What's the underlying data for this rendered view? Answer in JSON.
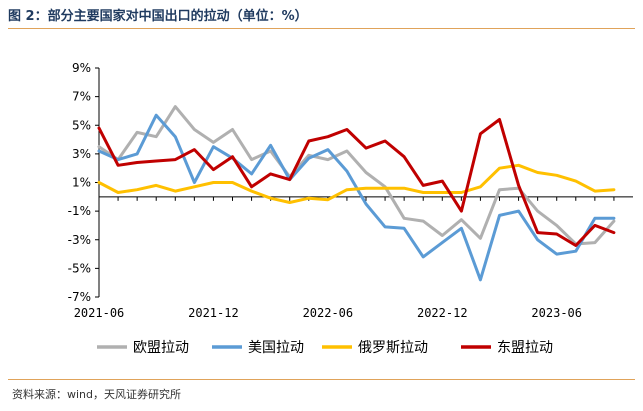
{
  "title": "图 2：部分主要国家对中国出口的拉动（单位：%）",
  "source": "资料来源：wind，天风证券研究所",
  "chart_data": {
    "type": "line",
    "x": [
      "2021-06",
      "2021-07",
      "2021-08",
      "2021-09",
      "2021-10",
      "2021-11",
      "2021-12",
      "2022-01",
      "2022-02",
      "2022-03",
      "2022-04",
      "2022-05",
      "2022-06",
      "2022-07",
      "2022-08",
      "2022-09",
      "2022-10",
      "2022-11",
      "2022-12",
      "2023-01",
      "2023-02",
      "2023-03",
      "2023-04",
      "2023-05",
      "2023-06",
      "2023-07",
      "2023-08",
      "2023-09"
    ],
    "x_tick_labels": [
      "2021-06",
      "2021-12",
      "2022-06",
      "2022-12",
      "2023-06"
    ],
    "y_tick_labels": [
      "9%",
      "7%",
      "5%",
      "3%",
      "1%",
      "-1%",
      "-3%",
      "-5%",
      "-7%"
    ],
    "ylim": [
      -7,
      9
    ],
    "legend_position": "bottom",
    "grid": false,
    "series": [
      {
        "name": "欧盟拉动",
        "color": "#b0b0b0",
        "values": [
          3.5,
          2.6,
          4.5,
          4.2,
          6.3,
          4.7,
          3.8,
          4.7,
          2.6,
          3.2,
          1.4,
          2.9,
          2.6,
          3.2,
          1.7,
          0.7,
          -1.5,
          -1.7,
          -2.7,
          -1.6,
          -2.9,
          0.5,
          0.6,
          -1.0,
          -2.0,
          -3.3,
          -3.2,
          -1.7
        ]
      },
      {
        "name": "美国拉动",
        "color": "#5b9bd5",
        "values": [
          3.2,
          2.6,
          3.0,
          5.7,
          4.2,
          1.0,
          3.5,
          2.7,
          1.6,
          3.6,
          1.2,
          2.7,
          3.3,
          1.8,
          -0.5,
          -2.1,
          -2.2,
          -4.2,
          -3.2,
          -2.2,
          -5.8,
          -1.3,
          -1.0,
          -3.0,
          -4.0,
          -3.8,
          -1.5,
          -1.5
        ]
      },
      {
        "name": "俄罗斯拉动",
        "color": "#ffc000",
        "values": [
          1.0,
          0.3,
          0.5,
          0.8,
          0.4,
          0.7,
          1.0,
          1.0,
          0.4,
          -0.1,
          -0.4,
          -0.1,
          -0.2,
          0.5,
          0.6,
          0.6,
          0.6,
          0.3,
          0.3,
          0.3,
          0.7,
          2.0,
          2.2,
          1.7,
          1.5,
          1.1,
          0.4,
          0.5
        ]
      },
      {
        "name": "东盟拉动",
        "color": "#c00000",
        "values": [
          4.8,
          2.2,
          2.4,
          2.5,
          2.6,
          3.3,
          1.9,
          2.8,
          0.7,
          1.6,
          1.2,
          3.9,
          4.2,
          4.7,
          3.4,
          3.9,
          2.8,
          0.8,
          1.1,
          -1.0,
          4.4,
          5.4,
          0.8,
          -2.5,
          -2.6,
          -3.4,
          -2.0,
          -2.5
        ]
      }
    ]
  }
}
